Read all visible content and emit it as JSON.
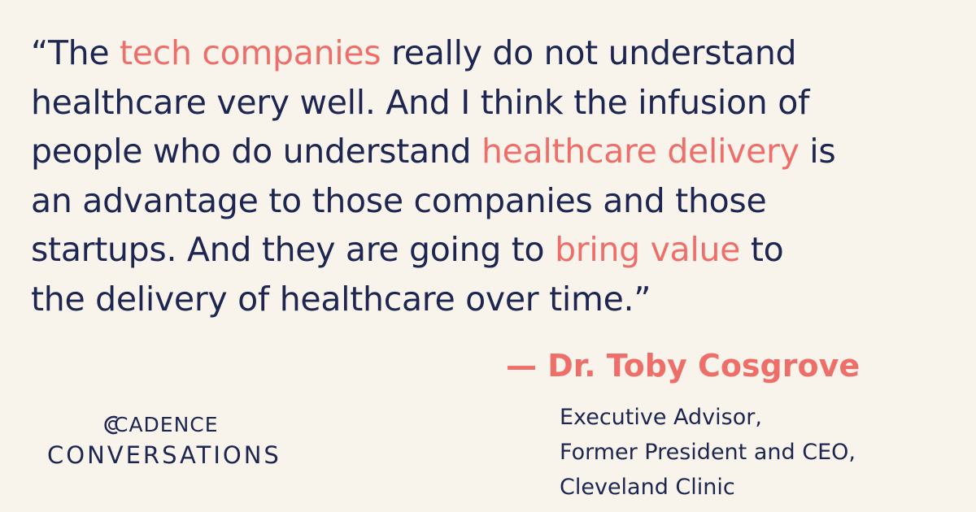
{
  "quote": {
    "lines": [
      [
        {
          "text": "“The "
        },
        {
          "text": "tech companies",
          "accent": true
        },
        {
          "text": " really do not understand"
        }
      ],
      [
        {
          "text": "healthcare very well. And I think the infusion of"
        }
      ],
      [
        {
          "text": "people who do understand "
        },
        {
          "text": "healthcare delivery",
          "accent": true
        },
        {
          "text": " is"
        }
      ],
      [
        {
          "text": "an advantage to those companies and those"
        }
      ],
      [
        {
          "text": "startups. And they are going to "
        },
        {
          "text": "bring value",
          "accent": true
        },
        {
          "text": " to"
        }
      ],
      [
        {
          "text": "the delivery of healthcare over time.”"
        }
      ]
    ]
  },
  "attribution": {
    "name": "— Dr. Toby Cosgrove",
    "roles": [
      "Executive Advisor,",
      "Former President and CEO,",
      "Cleveland Clinic"
    ]
  },
  "logo": {
    "brand": "CADENCE",
    "series": "CONVERSATIONS"
  }
}
